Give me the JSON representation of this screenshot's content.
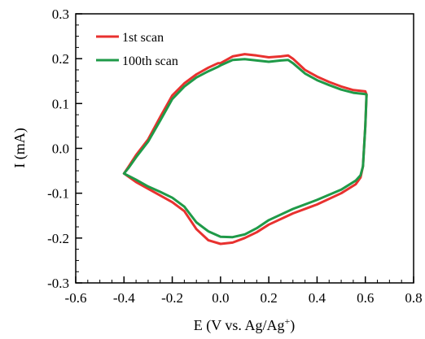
{
  "chart_data": {
    "type": "line",
    "title": "",
    "xlabel": "E (V vs. Ag/Ag",
    "xlabel_sup": "+",
    "xlabel_end": ")",
    "ylabel": "I (mA)",
    "xlim": [
      -0.6,
      0.8
    ],
    "ylim": [
      -0.3,
      0.3
    ],
    "xticks": [
      "-0.6",
      "-0.4",
      "-0.2",
      "0.0",
      "0.2",
      "0.4",
      "0.6",
      "0.8"
    ],
    "yticks": [
      "0.3",
      "0.2",
      "0.1",
      "0.0",
      "-0.1",
      "-0.2",
      "-0.3"
    ],
    "grid": false,
    "legend": "top-left",
    "series": [
      {
        "name": "1st scan",
        "color": "#e8312f",
        "x": [
          0.0,
          0.05,
          0.1,
          0.15,
          0.2,
          0.25,
          0.28,
          0.3,
          0.35,
          0.4,
          0.45,
          0.5,
          0.55,
          0.6,
          0.605,
          0.6,
          0.59,
          0.58,
          0.56,
          0.5,
          0.4,
          0.3,
          0.2,
          0.15,
          0.1,
          0.05,
          0.0,
          -0.05,
          -0.1,
          -0.15,
          -0.2,
          -0.25,
          -0.3,
          -0.35,
          -0.4,
          -0.38,
          -0.35,
          -0.3,
          -0.25,
          -0.2,
          -0.15,
          -0.1,
          -0.05,
          -0.01
        ],
        "y": [
          0.19,
          0.205,
          0.21,
          0.207,
          0.203,
          0.205,
          0.207,
          0.2,
          0.175,
          0.16,
          0.148,
          0.138,
          0.13,
          0.127,
          0.12,
          0.05,
          -0.04,
          -0.065,
          -0.08,
          -0.1,
          -0.125,
          -0.145,
          -0.17,
          -0.187,
          -0.2,
          -0.21,
          -0.213,
          -0.205,
          -0.18,
          -0.14,
          -0.12,
          -0.105,
          -0.09,
          -0.075,
          -0.056,
          -0.04,
          -0.015,
          0.02,
          0.07,
          0.118,
          0.145,
          0.165,
          0.18,
          0.19
        ]
      },
      {
        "name": "100th scan",
        "color": "#1f9a48",
        "x": [
          0.0,
          0.05,
          0.1,
          0.15,
          0.2,
          0.25,
          0.28,
          0.3,
          0.35,
          0.4,
          0.45,
          0.5,
          0.55,
          0.6,
          0.605,
          0.6,
          0.59,
          0.58,
          0.56,
          0.5,
          0.4,
          0.3,
          0.2,
          0.15,
          0.1,
          0.05,
          0.0,
          -0.05,
          -0.1,
          -0.15,
          -0.2,
          -0.25,
          -0.3,
          -0.35,
          -0.4,
          -0.38,
          -0.35,
          -0.3,
          -0.25,
          -0.2,
          -0.15,
          -0.1,
          -0.05,
          -0.01
        ],
        "y": [
          0.185,
          0.197,
          0.199,
          0.196,
          0.193,
          0.196,
          0.197,
          0.19,
          0.167,
          0.152,
          0.141,
          0.131,
          0.124,
          0.121,
          0.12,
          0.05,
          -0.04,
          -0.06,
          -0.072,
          -0.092,
          -0.115,
          -0.135,
          -0.16,
          -0.178,
          -0.192,
          -0.198,
          -0.197,
          -0.185,
          -0.165,
          -0.13,
          -0.11,
          -0.097,
          -0.085,
          -0.07,
          -0.056,
          -0.043,
          -0.02,
          0.015,
          0.062,
          0.11,
          0.138,
          0.158,
          0.172,
          0.182
        ]
      }
    ]
  }
}
